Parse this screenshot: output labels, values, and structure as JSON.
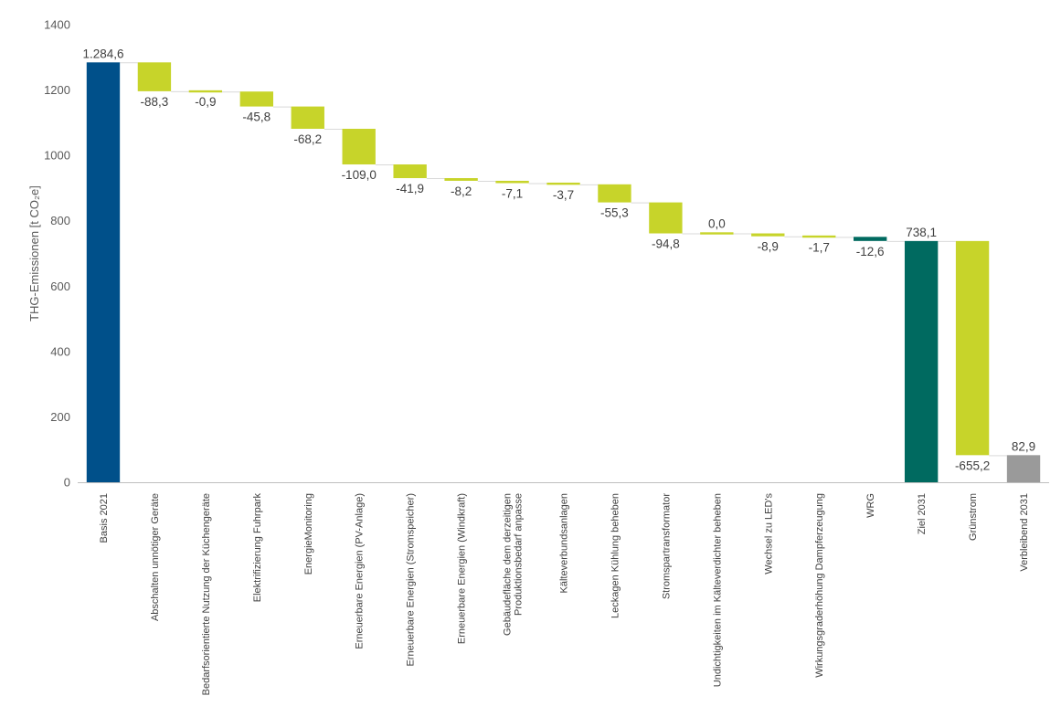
{
  "chart_data": {
    "type": "waterfall",
    "ylabel": "THG-Emissionen [t CO₂e]",
    "ylim": [
      0,
      1400
    ],
    "yticks": [
      0,
      200,
      400,
      600,
      800,
      1000,
      1200,
      1400
    ],
    "grid": false,
    "legend": "none",
    "colors": {
      "total_blue": "#00508a",
      "total_teal": "#006a60",
      "total_gray": "#9a9a9a",
      "reduction_green": "#c7d42a",
      "connector": "#d9d9d9",
      "axis": "#bfbfbf"
    },
    "items": [
      {
        "category": "Basis 2021",
        "value": 1284.6,
        "label": "1.284,6",
        "kind": "total",
        "color": "#00508a"
      },
      {
        "category": "Abschalten unnötiger Geräte",
        "value": -88.3,
        "label": "-88,3",
        "kind": "delta"
      },
      {
        "category": "Bedarfsorientierte Nutzung der Küchengeräte",
        "value": -0.9,
        "label": "-0,9",
        "kind": "delta"
      },
      {
        "category": "Elektrifizierung Fuhrpark",
        "value": -45.8,
        "label": "-45,8",
        "kind": "delta"
      },
      {
        "category": "EnergieMonitoring",
        "value": -68.2,
        "label": "-68,2",
        "kind": "delta"
      },
      {
        "category": "Erneuerbare Energien (PV-Anlage)",
        "value": -109.0,
        "label": "-109,0",
        "kind": "delta"
      },
      {
        "category": "Erneuerbare Energien (Stromspeicher)",
        "value": -41.9,
        "label": "-41,9",
        "kind": "delta"
      },
      {
        "category": "Erneuerbare Energien (Windkraft)",
        "value": -8.2,
        "label": "-8,2",
        "kind": "delta"
      },
      {
        "category": "Gebäudefläche dem derzeitigen Produktionsbedarf anpasse",
        "lines": [
          "Gebäudefläche dem derzeitigen",
          "Produktionsbedarf anpasse"
        ],
        "value": -7.1,
        "label": "-7,1",
        "kind": "delta"
      },
      {
        "category": "Kälteverbundsanlagen",
        "value": -3.7,
        "label": "-3,7",
        "kind": "delta"
      },
      {
        "category": "Leckagen Kühlung beheben",
        "value": -55.3,
        "label": "-55,3",
        "kind": "delta"
      },
      {
        "category": "Stromspartransformator",
        "value": -94.8,
        "label": "-94,8",
        "kind": "delta"
      },
      {
        "category": "Undichtigkeiten im Kälteverdichter beheben",
        "value": 0.0,
        "label": "0,0",
        "kind": "delta"
      },
      {
        "category": "Wechsel zu LED's",
        "value": -8.9,
        "label": "-8,9",
        "kind": "delta"
      },
      {
        "category": "Wirkungsgraderhöhung Dampferzeugung",
        "value": -1.7,
        "label": "-1,7",
        "kind": "delta"
      },
      {
        "category": "WRG",
        "value": -12.6,
        "label": "-12,6",
        "kind": "delta",
        "color": "#006a60"
      },
      {
        "category": "Ziel 2031",
        "value": 738.1,
        "label": "738,1",
        "kind": "total",
        "color": "#006a60"
      },
      {
        "category": "Grünstrom",
        "value": -655.2,
        "label": "-655,2",
        "kind": "delta"
      },
      {
        "category": "Verbleibend 2031",
        "value": 82.9,
        "label": "82,9",
        "kind": "total",
        "color": "#9a9a9a"
      }
    ]
  }
}
